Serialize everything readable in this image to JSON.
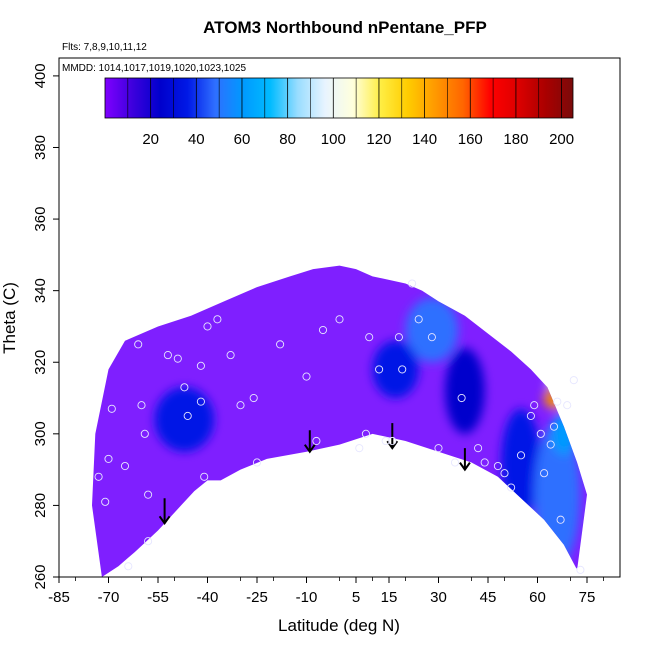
{
  "chart_data": {
    "type": "heatmap",
    "title": "ATOM3 Northbound nPentane_PFP",
    "flights_note": "Flts: 7,8,9,10,11,12",
    "dates_note": "MMDD: 1014,1017,1019,1020,1023,1025",
    "xlabel": "Latitude (deg N)",
    "ylabel": "Theta (C)",
    "xlim": [
      -85,
      85
    ],
    "ylim": [
      260,
      405
    ],
    "x_tick_labels": [
      "-85",
      "-70",
      "-55",
      "-40",
      "-25",
      "-10",
      "5",
      "15",
      "30",
      "45",
      "60",
      "75"
    ],
    "y_tick_labels": [
      "260",
      "280",
      "300",
      "320",
      "340",
      "360",
      "380",
      "400"
    ],
    "colorbar": {
      "range": [
        0,
        205
      ],
      "tick_labels": [
        "20",
        "40",
        "60",
        "80",
        "100",
        "120",
        "140",
        "160",
        "180",
        "200"
      ],
      "colors": [
        "#7f00ff",
        "#3d00dd",
        "#0000cc",
        "#0019e6",
        "#2f6fff",
        "#0099ff",
        "#00bbff",
        "#99ddff",
        "#e8f4ff",
        "#ffffdd",
        "#ffee44",
        "#ffcc00",
        "#ff9900",
        "#ff6600",
        "#ff0000",
        "#dd0000",
        "#aa0000",
        "#7a0a0a"
      ]
    },
    "colors": {
      "background_field": "#7f1fff",
      "point_stroke": "#e6e6ff",
      "arrow": "#000000"
    },
    "arrows_lat": [
      -53,
      -9,
      16,
      38
    ],
    "arrows_theta_top": [
      282,
      301,
      303,
      296
    ],
    "arrows_theta_bottom": [
      275,
      295,
      296,
      290
    ],
    "tropopause": {
      "lat": [
        -72,
        -67,
        -62,
        -55,
        -48,
        -44,
        -40,
        -36,
        -30,
        -22,
        -10,
        0,
        10,
        20,
        30,
        40,
        48,
        55,
        62,
        68,
        72
      ],
      "theta": [
        260,
        263,
        267,
        273,
        280,
        284,
        287,
        287,
        290,
        293,
        295,
        297,
        300,
        298,
        295,
        292,
        288,
        282,
        276,
        269,
        262
      ]
    },
    "upper_boundary": {
      "lat": [
        -75,
        -74,
        -70,
        -65,
        -55,
        -45,
        -35,
        -25,
        -15,
        -8,
        0,
        5,
        10,
        15,
        20,
        25,
        30,
        38,
        45,
        52,
        58,
        63,
        68,
        72,
        75
      ],
      "theta": [
        280,
        300,
        318,
        326,
        330,
        333,
        337,
        341,
        344,
        346,
        347,
        346,
        344,
        343,
        342,
        340,
        337,
        333,
        328,
        323,
        318,
        313,
        302,
        292,
        283
      ]
    },
    "blobs": [
      {
        "lat": -47,
        "theta": 304,
        "rx": 9,
        "ry": 9,
        "value": 35
      },
      {
        "lat": 28,
        "theta": 329,
        "rx": 8,
        "ry": 9,
        "value": 45
      },
      {
        "lat": 17,
        "theta": 318,
        "rx": 7,
        "ry": 8,
        "value": 40
      },
      {
        "lat": 38,
        "theta": 312,
        "rx": 6,
        "ry": 12,
        "value": 30
      },
      {
        "lat": 55,
        "theta": 292,
        "rx": 6,
        "ry": 15,
        "value": 40
      },
      {
        "lat": 66,
        "theta": 283,
        "rx": 7,
        "ry": 20,
        "value": 45
      },
      {
        "lat": 68,
        "theta": 300,
        "rx": 4,
        "ry": 6,
        "value": 65
      },
      {
        "lat": 67,
        "theta": 313,
        "rx": 4,
        "ry": 5,
        "value": 95
      },
      {
        "lat": 65,
        "theta": 310,
        "rx": 3,
        "ry": 3,
        "value": 150
      },
      {
        "lat": 66,
        "theta": 312,
        "rx": 2,
        "ry": 2,
        "value": 195
      }
    ],
    "points": [
      {
        "lat": -73,
        "theta": 288
      },
      {
        "lat": -71,
        "theta": 281
      },
      {
        "lat": -70,
        "theta": 293
      },
      {
        "lat": -69,
        "theta": 307
      },
      {
        "lat": -65,
        "theta": 291
      },
      {
        "lat": -64,
        "theta": 263
      },
      {
        "lat": -61,
        "theta": 325
      },
      {
        "lat": -60,
        "theta": 308
      },
      {
        "lat": -59,
        "theta": 300
      },
      {
        "lat": -58,
        "theta": 283
      },
      {
        "lat": -58,
        "theta": 270
      },
      {
        "lat": -52,
        "theta": 322
      },
      {
        "lat": -49,
        "theta": 321
      },
      {
        "lat": -47,
        "theta": 313
      },
      {
        "lat": -46,
        "theta": 305
      },
      {
        "lat": -42,
        "theta": 319
      },
      {
        "lat": -42,
        "theta": 309
      },
      {
        "lat": -41,
        "theta": 288
      },
      {
        "lat": -40,
        "theta": 330
      },
      {
        "lat": -37,
        "theta": 332
      },
      {
        "lat": -33,
        "theta": 322
      },
      {
        "lat": -30,
        "theta": 308
      },
      {
        "lat": -26,
        "theta": 310
      },
      {
        "lat": -25,
        "theta": 292
      },
      {
        "lat": -18,
        "theta": 325
      },
      {
        "lat": -10,
        "theta": 316
      },
      {
        "lat": -7,
        "theta": 298
      },
      {
        "lat": -5,
        "theta": 329
      },
      {
        "lat": 0,
        "theta": 332
      },
      {
        "lat": 6,
        "theta": 296
      },
      {
        "lat": 8,
        "theta": 300
      },
      {
        "lat": 9,
        "theta": 327
      },
      {
        "lat": 12,
        "theta": 318
      },
      {
        "lat": 14,
        "theta": 298
      },
      {
        "lat": 16,
        "theta": 298
      },
      {
        "lat": 18,
        "theta": 327
      },
      {
        "lat": 19,
        "theta": 318
      },
      {
        "lat": 22,
        "theta": 342
      },
      {
        "lat": 24,
        "theta": 332
      },
      {
        "lat": 28,
        "theta": 327
      },
      {
        "lat": 30,
        "theta": 296
      },
      {
        "lat": 35,
        "theta": 292
      },
      {
        "lat": 37,
        "theta": 310
      },
      {
        "lat": 42,
        "theta": 296
      },
      {
        "lat": 44,
        "theta": 292
      },
      {
        "lat": 48,
        "theta": 291
      },
      {
        "lat": 50,
        "theta": 289
      },
      {
        "lat": 52,
        "theta": 285
      },
      {
        "lat": 55,
        "theta": 294
      },
      {
        "lat": 58,
        "theta": 305
      },
      {
        "lat": 59,
        "theta": 308
      },
      {
        "lat": 61,
        "theta": 300
      },
      {
        "lat": 62,
        "theta": 289
      },
      {
        "lat": 64,
        "theta": 297
      },
      {
        "lat": 65,
        "theta": 302
      },
      {
        "lat": 66,
        "theta": 309
      },
      {
        "lat": 67,
        "theta": 276
      },
      {
        "lat": 69,
        "theta": 308
      },
      {
        "lat": 71,
        "theta": 315
      },
      {
        "lat": 73,
        "theta": 262
      }
    ]
  }
}
